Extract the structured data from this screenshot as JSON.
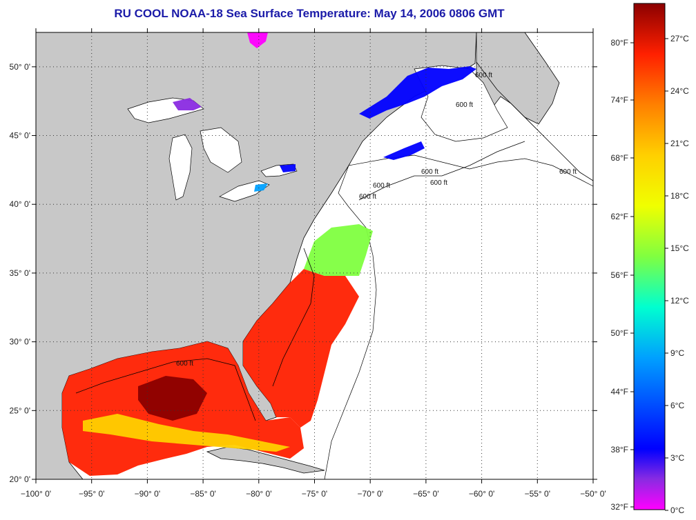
{
  "title": "RU COOL  NOAA-18  Sea Surface Temperature:  May 14, 2006 0806 GMT",
  "map": {
    "lon_range": [
      -100,
      -50
    ],
    "lat_range": [
      20,
      52.5
    ],
    "lon_ticks": [
      "−100° 0'",
      "−95° 0'",
      "−90° 0'",
      "−85° 0'",
      "−80° 0'",
      "−75° 0'",
      "−70° 0'",
      "−65° 0'",
      "−60° 0'",
      "−55° 0'",
      "−50° 0'"
    ],
    "lat_ticks": [
      "20° 0'",
      "25° 0'",
      "30° 0'",
      "35° 0'",
      "40° 0'",
      "45° 0'",
      "50° 0'"
    ],
    "contour_labels": [
      "600 ft",
      "600 ft",
      "600 ft",
      "600 ft",
      "600 ft",
      "600 ft",
      "600 ft",
      "600 ft"
    ],
    "land_color": "#c8c8c8",
    "nodata_color": "#ffffff",
    "grid": true
  },
  "colorbar": {
    "fahrenheit_labels": [
      "80°F",
      "74°F",
      "68°F",
      "62°F",
      "56°F",
      "50°F",
      "44°F",
      "38°F",
      "32°F"
    ],
    "celsius_labels": [
      "27°C",
      "24°C",
      "21°C",
      "18°C",
      "15°C",
      "12°C",
      "9°C",
      "6°C",
      "3°C",
      "0°C"
    ],
    "gradient_colors": [
      "#8b0000",
      "#ff2000",
      "#ff8000",
      "#ffd000",
      "#f0ff00",
      "#80ff40",
      "#00ffd0",
      "#00a0ff",
      "#0000ff",
      "#8a2be2",
      "#ff00ff"
    ]
  }
}
